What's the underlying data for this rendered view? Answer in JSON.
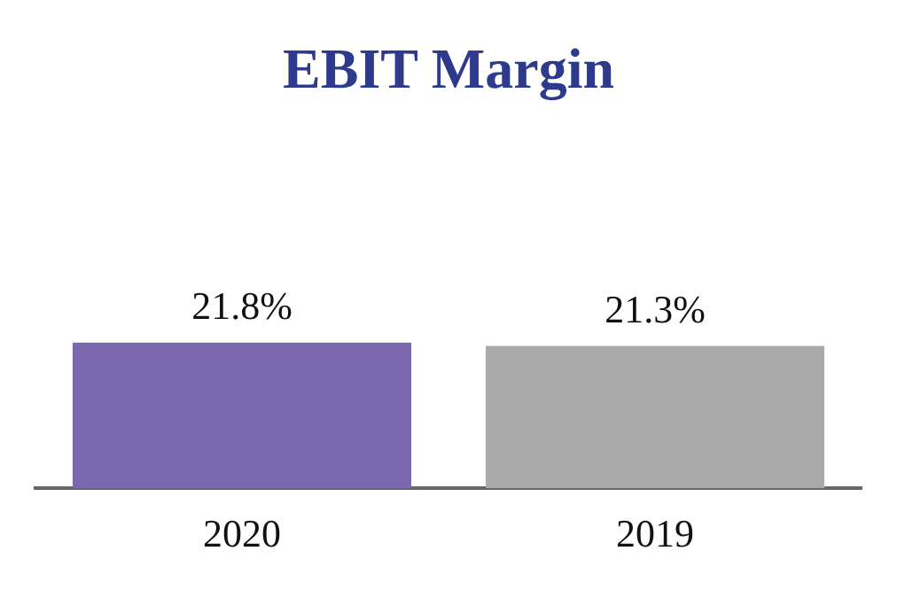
{
  "chart_data": {
    "type": "bar",
    "title": "EBIT Margin",
    "categories": [
      "2020",
      "2019"
    ],
    "values": [
      21.8,
      21.3
    ],
    "colors": [
      "#7b68ae",
      "#aaaaaa"
    ],
    "value_labels": [
      "21.8%",
      "21.3%"
    ],
    "grid": false,
    "legend": false
  }
}
